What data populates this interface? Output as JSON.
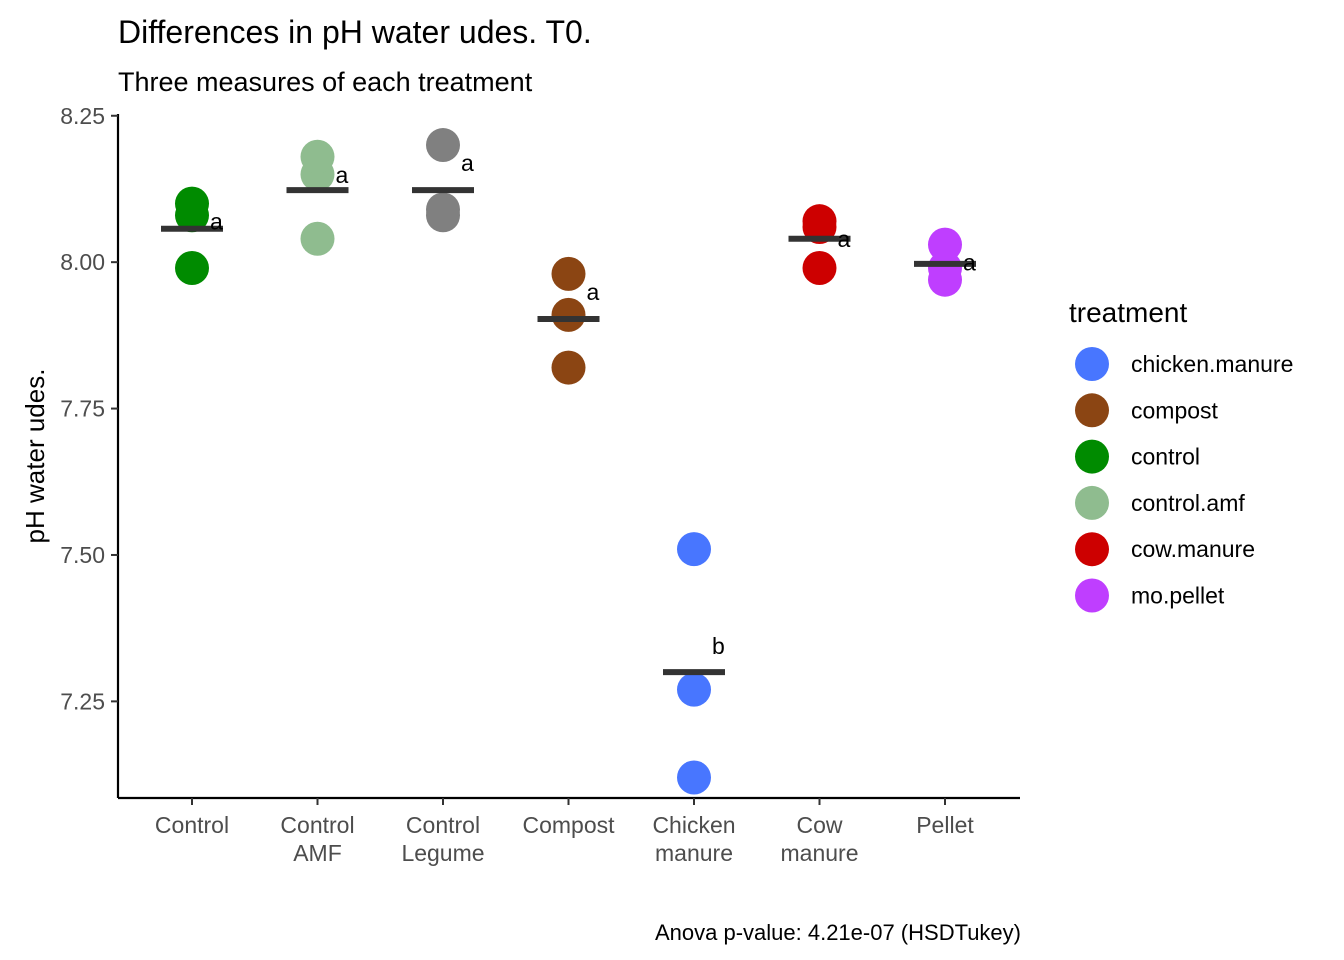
{
  "chart_data": {
    "type": "scatter",
    "title": "Differences in pH water udes. T0.",
    "subtitle": "Three measures of each treatment",
    "xlabel": "",
    "ylabel": "pH water udes.",
    "ylim": [
      7.085,
      8.253
    ],
    "yticks": [
      7.25,
      7.5,
      7.75,
      8.0,
      8.25
    ],
    "ytick_labels": [
      "7.25",
      "7.50",
      "7.75",
      "8.00",
      "8.25"
    ],
    "categories": [
      [
        "Control"
      ],
      [
        "Control",
        "AMF"
      ],
      [
        "Control",
        "Legume"
      ],
      [
        "Compost"
      ],
      [
        "Chicken",
        "manure"
      ],
      [
        "Cow",
        "manure"
      ],
      [
        "Pellet"
      ]
    ],
    "series": [
      {
        "name": "control",
        "treatment_index": 0,
        "color": "#008B00",
        "values": [
          7.99,
          8.08,
          8.1
        ],
        "mean": 8.057,
        "letter": "a"
      },
      {
        "name": "control.amf",
        "treatment_index": 1,
        "color": "#8FBC8F",
        "values": [
          8.04,
          8.15,
          8.18
        ],
        "mean": 8.123,
        "letter": "a"
      },
      {
        "name": "control.legume",
        "treatment_index": 2,
        "color": "#808080",
        "values": [
          8.08,
          8.09,
          8.2
        ],
        "mean": 8.123,
        "letter": "a"
      },
      {
        "name": "compost",
        "treatment_index": 3,
        "color": "#8B4513",
        "values": [
          7.82,
          7.91,
          7.98
        ],
        "mean": 7.903,
        "letter": "a"
      },
      {
        "name": "chicken.manure",
        "treatment_index": 4,
        "color": "#4876FF",
        "values": [
          7.12,
          7.27,
          7.51
        ],
        "mean": 7.3,
        "letter": "b"
      },
      {
        "name": "cow.manure",
        "treatment_index": 5,
        "color": "#CD0000",
        "values": [
          7.99,
          8.06,
          8.07
        ],
        "mean": 8.04,
        "letter": "a"
      },
      {
        "name": "mo.pellet",
        "treatment_index": 6,
        "color": "#BF3EFF",
        "values": [
          7.97,
          7.99,
          8.03
        ],
        "mean": 7.997,
        "letter": "a"
      }
    ],
    "mean_bar_color": "#333333",
    "legend": {
      "title": "treatment",
      "placement": "right",
      "items": [
        {
          "label": "chicken.manure",
          "color": "#4876FF"
        },
        {
          "label": "compost",
          "color": "#8B4513"
        },
        {
          "label": "control",
          "color": "#008B00"
        },
        {
          "label": "control.amf",
          "color": "#8FBC8F"
        },
        {
          "label": "cow.manure",
          "color": "#CD0000"
        },
        {
          "label": "mo.pellet",
          "color": "#BF3EFF"
        }
      ]
    },
    "caption": "Anova p-value: 4.21e-07 (HSDTukey)",
    "grid": false
  }
}
